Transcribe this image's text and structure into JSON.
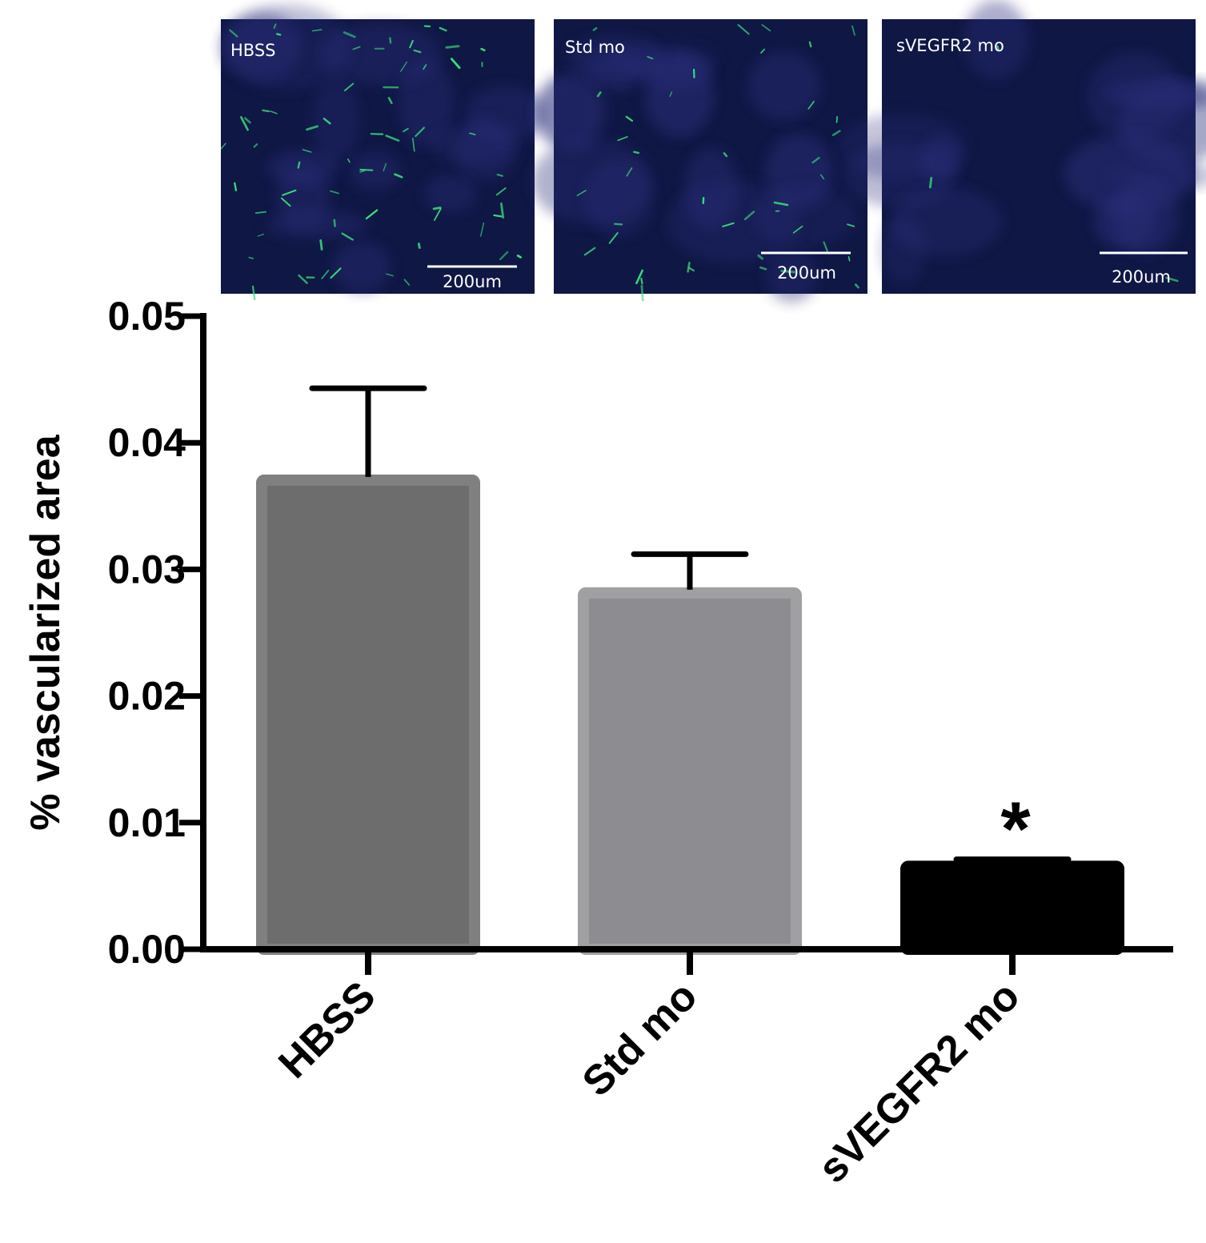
{
  "panels": [
    {
      "label": "HBSS",
      "scale_bar": "200um",
      "vessel_density": 1.0
    },
    {
      "label": "Std mo",
      "scale_bar": "200um",
      "vessel_density": 0.6
    },
    {
      "label": "sVEGFR2 mo",
      "scale_bar": "200um",
      "vessel_density": 0.04
    }
  ],
  "colors": {
    "panel_bg": "#0f1744",
    "panel_haze": "#2a2f7a",
    "vessel": "#39e07a",
    "bar_HBSS": "#6d6d6d",
    "bar_HBSS_edge": "#808080",
    "bar_Std": "#8d8d91",
    "bar_Std_edge": "#a0a0a3",
    "bar_sVEGFR2": "#000000",
    "axis": "#000000"
  },
  "chart_data": {
    "type": "bar",
    "categories": [
      "HBSS",
      "Std mo",
      "sVEGFR2 mo"
    ],
    "values": [
      0.0373,
      0.0284,
      0.0068
    ],
    "error_upper": [
      0.0443,
      0.0312,
      0.0071
    ],
    "ylabel": "% vascularized area",
    "ylim": [
      0,
      0.05
    ],
    "yticks": [
      "0.00",
      "0.01",
      "0.02",
      "0.03",
      "0.04",
      "0.05"
    ],
    "annotations": [
      {
        "category": "sVEGFR2 mo",
        "text": "*"
      }
    ]
  }
}
